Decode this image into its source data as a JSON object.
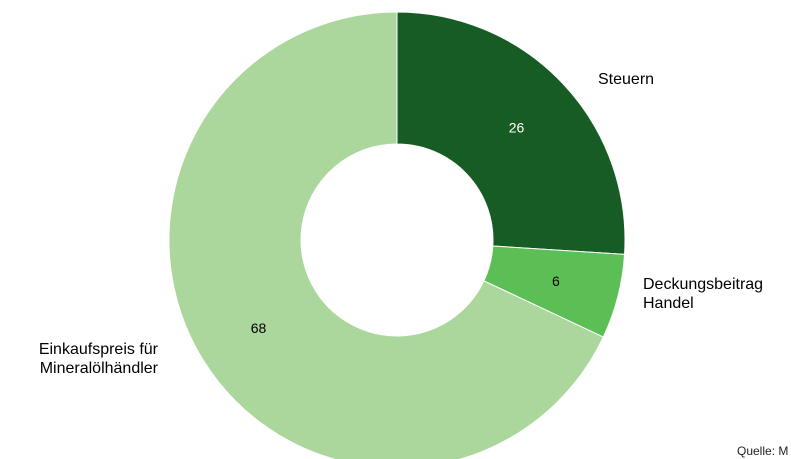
{
  "chart_data": {
    "type": "pie",
    "variant": "donut",
    "categories": [
      "Steuern",
      "Deckungsbeitrag Handel",
      "Einkaufspreis für Mineralölhändler"
    ],
    "label_lines": [
      [
        "Steuern"
      ],
      [
        "Deckungsbeitrag",
        "Handel"
      ],
      [
        "Einkaufspreis für",
        "Mineralölhändler"
      ]
    ],
    "values": [
      26,
      6,
      68
    ],
    "value_labels": [
      "26",
      "6",
      "68"
    ],
    "colors": [
      "#165c24",
      "#5cbf55",
      "#abd69c"
    ],
    "value_label_colors": [
      "#ffffff",
      "#000000",
      "#000000"
    ],
    "start_angle_deg": 0,
    "direction": "clockwise"
  },
  "source_note": "Quelle: M"
}
